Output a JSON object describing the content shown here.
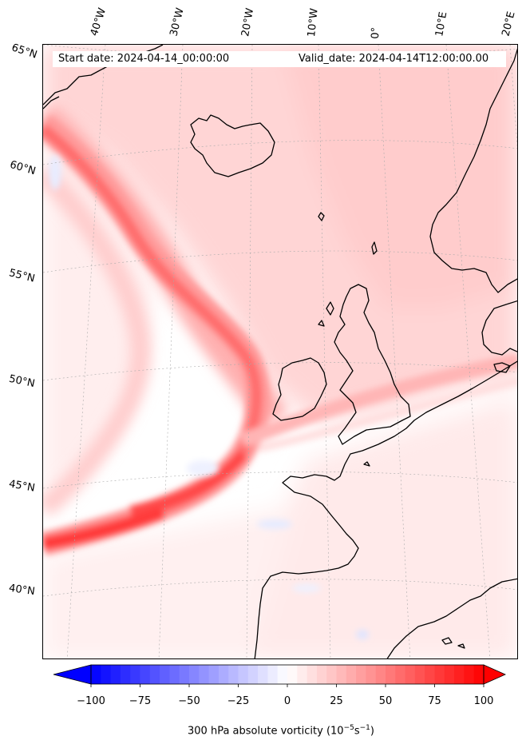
{
  "header": {
    "start_date": "Start date: 2024-04-14_00:00:00",
    "valid_date": "Valid_date: 2024-04-14T12:00:00.00"
  },
  "longitude_labels": [
    "40°W",
    "30°W",
    "20°W",
    "10°W",
    "0°",
    "10°E",
    "20°E"
  ],
  "latitude_labels": [
    "65°N",
    "60°N",
    "55°N",
    "50°N",
    "45°N",
    "40°N"
  ],
  "colorbar": {
    "label_text": "300 hPa absolute vorticity (10",
    "label_exp1": "−5",
    "label_mid": "s",
    "label_exp2": "−1",
    "label_end": ")",
    "min": -100,
    "max": 100,
    "ticks": [
      "−100",
      "−75",
      "−50",
      "−25",
      "0",
      "25",
      "50",
      "75",
      "100"
    ],
    "extend": "both",
    "colormap": "bwr",
    "color_min": "#0000ff",
    "color_mid": "#ffffff",
    "color_max": "#ff0000"
  },
  "map": {
    "field": "300 hPa absolute vorticity",
    "coastline_color": "#000000",
    "gridline_color": "#999999"
  }
}
